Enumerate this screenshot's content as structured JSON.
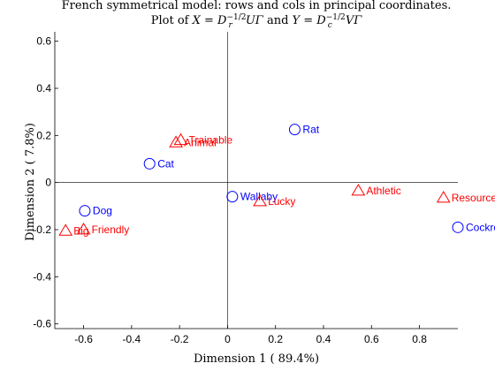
{
  "chart_data": {
    "type": "scatter",
    "title_line1": "French symmetrical model: rows and cols in principal coordinates.",
    "title_line2_prefix": "Plot of ",
    "title_line2_X": "X",
    "title_line2_eq1": " = ",
    "title_line2_D": "D",
    "title_line2_sub_r": "r",
    "title_line2_exp": "−1/2",
    "title_line2_UG": "UΓ",
    "title_line2_and": " and ",
    "title_line2_Y": "Y",
    "title_line2_eq2": " = ",
    "title_line2_D2": "D",
    "title_line2_sub_c": "c",
    "title_line2_exp2": "−1/2",
    "title_line2_VG": "VΓ",
    "xlabel": "Dimension  1 ( 89.4%)",
    "ylabel": "Dimension  2 (  7.8%)",
    "xlim": [
      -0.72,
      0.96
    ],
    "ylim": [
      -0.62,
      0.64
    ],
    "xticks": [
      -0.6,
      -0.4,
      -0.2,
      0,
      0.2,
      0.4,
      0.6,
      0.8
    ],
    "xtick_labels": [
      "-0.6",
      "-0.4",
      "-0.2",
      "0",
      "0.2",
      "0.4",
      "0.6",
      "0.8"
    ],
    "yticks": [
      -0.6,
      -0.4,
      -0.2,
      0,
      0.2,
      0.4,
      0.6
    ],
    "ytick_labels": [
      "-0.6",
      "-0.4",
      "-0.2",
      "0",
      "0.2",
      "0.4",
      "0.6"
    ],
    "grid": false,
    "series": [
      {
        "name": "rows",
        "marker": "circle",
        "color": "#0000ff",
        "points": [
          {
            "label": "Rat",
            "x": 0.28,
            "y": 0.225
          },
          {
            "label": "Cat",
            "x": -0.325,
            "y": 0.08
          },
          {
            "label": "Wallaby",
            "x": 0.02,
            "y": -0.06
          },
          {
            "label": "Dog",
            "x": -0.595,
            "y": -0.12
          },
          {
            "label": "Cockroach",
            "x": 0.96,
            "y": -0.19
          }
        ]
      },
      {
        "name": "cols",
        "marker": "triangle",
        "color": "#ff0000",
        "points": [
          {
            "label": "Trainable",
            "x": -0.195,
            "y": 0.18
          },
          {
            "label": "Animal",
            "x": -0.215,
            "y": 0.17
          },
          {
            "label": "Lucky",
            "x": 0.135,
            "y": -0.08
          },
          {
            "label": "Athletic",
            "x": 0.545,
            "y": -0.035
          },
          {
            "label": "Resourceful",
            "x": 0.9,
            "y": -0.065
          },
          {
            "label": "Friendly",
            "x": -0.6,
            "y": -0.2
          },
          {
            "label": "Big",
            "x": -0.675,
            "y": -0.205
          }
        ]
      }
    ]
  }
}
